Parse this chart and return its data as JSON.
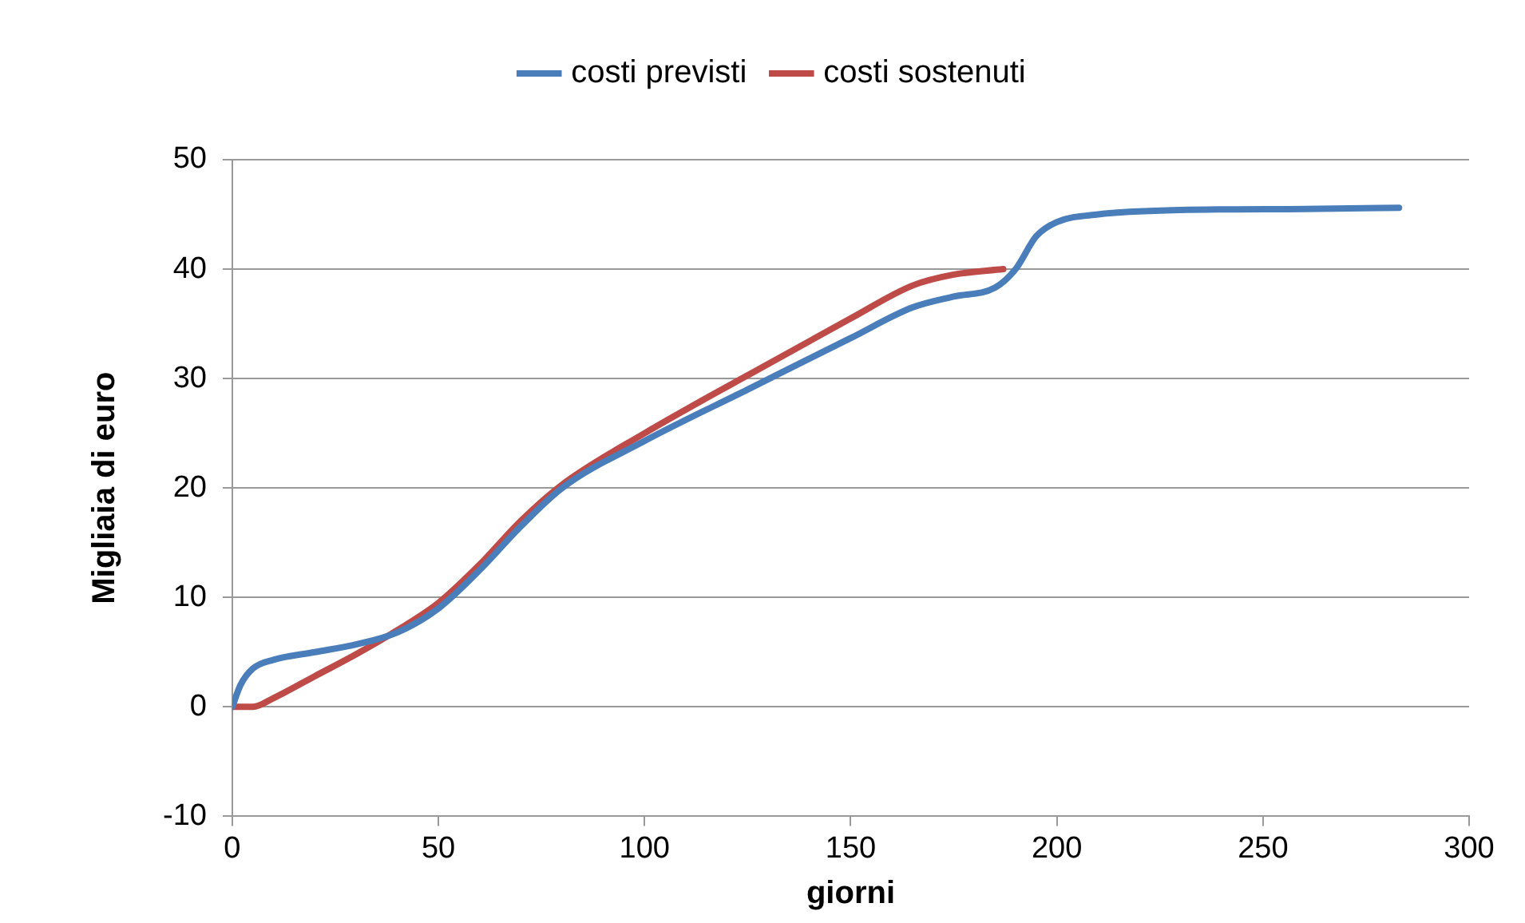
{
  "chart_data": {
    "type": "line",
    "xlabel": "giorni",
    "ylabel": "Migliaia di euro",
    "xlim": [
      0,
      300
    ],
    "xticks": [
      0,
      50,
      100,
      150,
      200,
      250,
      300
    ],
    "ylim": [
      -10,
      50
    ],
    "yticks": [
      -10,
      0,
      10,
      20,
      30,
      40,
      50
    ],
    "grid": "y",
    "legend": "top",
    "marker": "none",
    "line_style": "solid",
    "series": [
      {
        "name": "costi previsti",
        "color": "#4a7ebb",
        "x": [
          0,
          2,
          5,
          10,
          20,
          30,
          40,
          50,
          60,
          70,
          80,
          100,
          125,
          150,
          165,
          175,
          185,
          190,
          195,
          200,
          210,
          230,
          260,
          283
        ],
        "values": [
          0,
          2,
          3.5,
          4.3,
          5,
          5.7,
          6.8,
          9,
          12.5,
          16.5,
          20,
          24.3,
          29,
          33.7,
          36.5,
          37.5,
          38.3,
          40,
          43,
          44.3,
          45,
          45.4,
          45.5,
          45.6
        ]
      },
      {
        "name": "costi sostenuti",
        "color": "#be4b48",
        "x": [
          0,
          5,
          10,
          20,
          30,
          40,
          50,
          60,
          70,
          80,
          100,
          125,
          150,
          165,
          175,
          187
        ],
        "values": [
          0,
          0,
          0.8,
          2.8,
          4.8,
          7,
          9.5,
          13,
          17,
          20.3,
          25,
          30.3,
          35.5,
          38.5,
          39.5,
          40
        ]
      }
    ]
  }
}
